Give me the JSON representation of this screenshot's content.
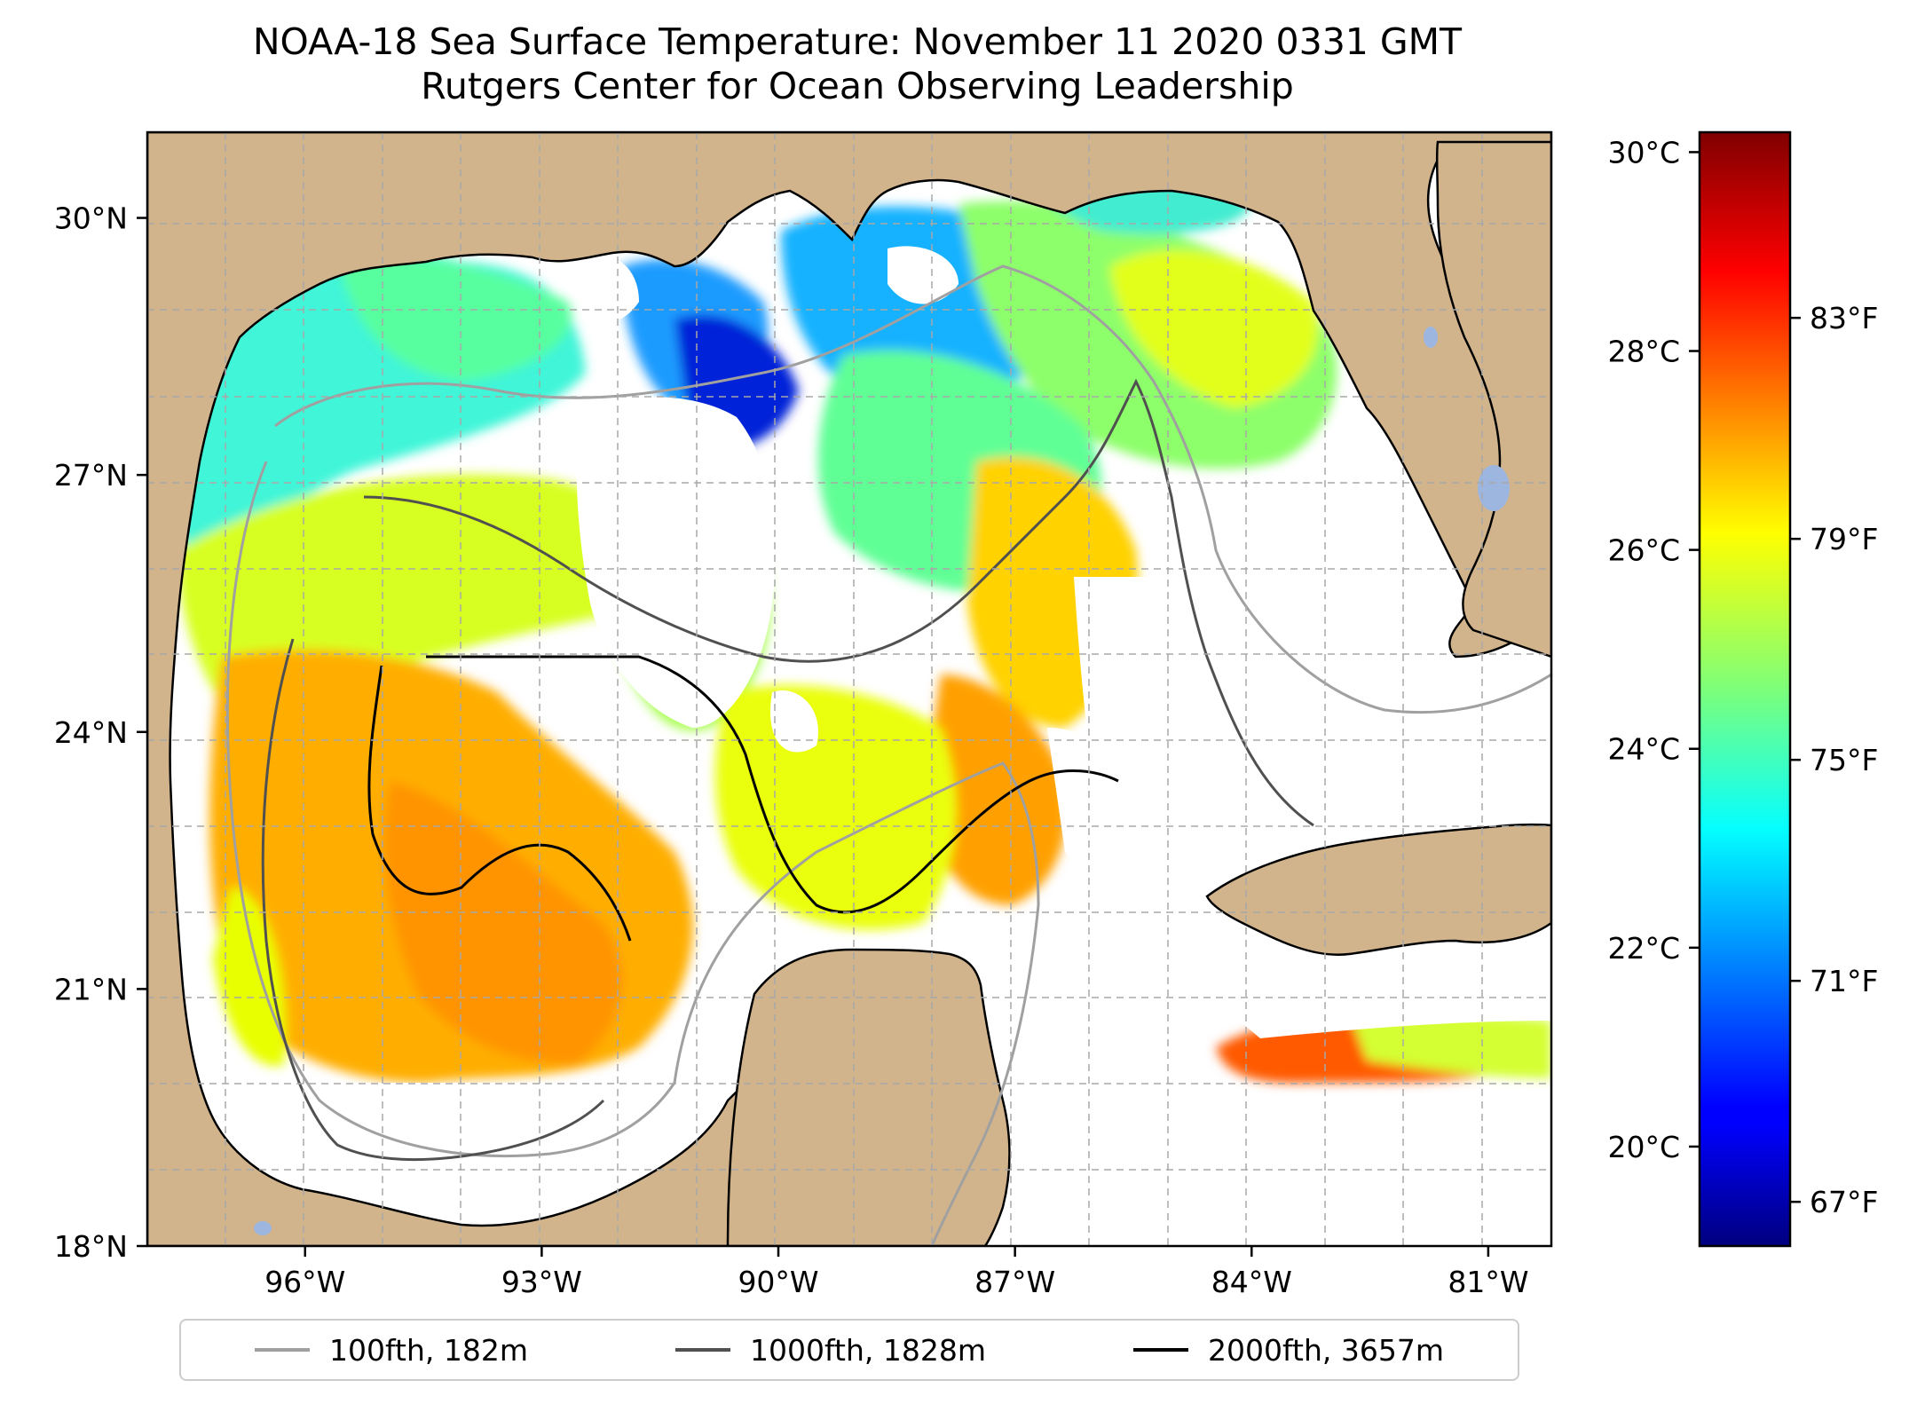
{
  "title": {
    "line1": "NOAA-18 Sea Surface Temperature: November 11 2020 0331 GMT",
    "line2": "Rutgers Center for Ocean Observing Leadership"
  },
  "map": {
    "lon_range": [
      -98.0,
      -80.2
    ],
    "lat_range": [
      18.0,
      31.0
    ],
    "gridlines": true,
    "lat_ticks": [
      {
        "value": 18,
        "label": "18°N"
      },
      {
        "value": 21,
        "label": "21°N"
      },
      {
        "value": 24,
        "label": "24°N"
      },
      {
        "value": 27,
        "label": "27°N"
      },
      {
        "value": 30,
        "label": "30°N"
      }
    ],
    "lon_ticks": [
      {
        "value": -96,
        "label": "96°W"
      },
      {
        "value": -93,
        "label": "93°W"
      },
      {
        "value": -90,
        "label": "90°W"
      },
      {
        "value": -87,
        "label": "87°W"
      },
      {
        "value": -84,
        "label": "84°W"
      },
      {
        "value": -81,
        "label": "81°W"
      }
    ]
  },
  "colorbar": {
    "colormap": "jet",
    "celsius_range": [
      19.0,
      30.2
    ],
    "celsius_ticks": [
      {
        "value": 20,
        "label": "20°C"
      },
      {
        "value": 22,
        "label": "22°C"
      },
      {
        "value": 24,
        "label": "24°C"
      },
      {
        "value": 26,
        "label": "26°C"
      },
      {
        "value": 28,
        "label": "28°C"
      },
      {
        "value": 30,
        "label": "30°C"
      }
    ],
    "fahrenheit_ticks": [
      {
        "value": 67,
        "label": "67°F"
      },
      {
        "value": 71,
        "label": "71°F"
      },
      {
        "value": 75,
        "label": "75°F"
      },
      {
        "value": 79,
        "label": "79°F"
      },
      {
        "value": 83,
        "label": "83°F"
      }
    ]
  },
  "legend": {
    "placement": "bottom",
    "items": [
      {
        "label": "100fth, 182m",
        "color": "#a0a0a0"
      },
      {
        "label": "1000fth, 1828m",
        "color": "#505050"
      },
      {
        "label": "2000fth, 3657m",
        "color": "#000000"
      }
    ]
  },
  "colors": {
    "land": "#d2b48c",
    "lakes": "#9db6df",
    "no_data": "#ffffff"
  }
}
